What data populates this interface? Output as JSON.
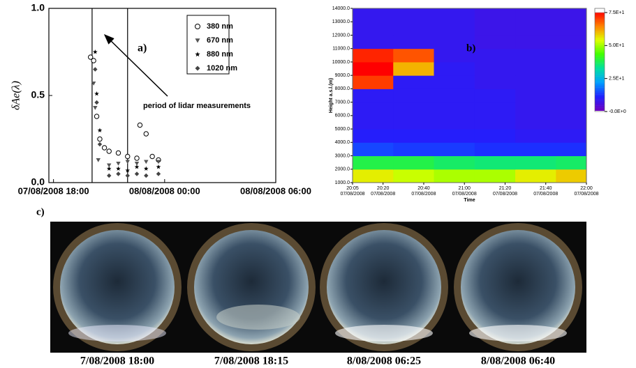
{
  "chart_data": [
    {
      "type": "scatter",
      "annotation": "a)",
      "arrow_label": "period of lidar measurements",
      "ylabel": "δAe(λ)",
      "xlim": [
        "2008-08-07 17:45",
        "2008-08-08 06:00"
      ],
      "xticks": [
        {
          "value": "2008-08-07 18:00",
          "label": "07/08/2008 18:00"
        },
        {
          "value": "2008-08-08 00:00",
          "label": "08/08/2008 00:00"
        },
        {
          "value": "2008-08-08 06:00",
          "label": "08/08/2008 06:00"
        }
      ],
      "ylim": [
        0,
        1
      ],
      "yticks": [
        {
          "value": 0,
          "label": "0.0"
        },
        {
          "value": 0.5,
          "label": "0.5"
        },
        {
          "value": 1,
          "label": "1.0"
        }
      ],
      "vlines": [
        "2008-08-07 20:05",
        "2008-08-07 22:00"
      ],
      "series": [
        {
          "name": "380 nm",
          "marker": "circle",
          "color": "#000000",
          "x": [
            "2008-08-07 20:00",
            "2008-08-07 20:10",
            "2008-08-07 20:20",
            "2008-08-07 20:30",
            "2008-08-07 20:45",
            "2008-08-07 21:00",
            "2008-08-07 21:30",
            "2008-08-07 22:00",
            "2008-08-07 22:30",
            "2008-08-07 22:40",
            "2008-08-07 23:00",
            "2008-08-07 23:20",
            "2008-08-07 23:40"
          ],
          "values": [
            0.72,
            0.7,
            0.38,
            0.25,
            0.2,
            0.18,
            0.17,
            0.15,
            0.14,
            0.33,
            0.28,
            0.15,
            0.13
          ]
        },
        {
          "name": "670 nm",
          "marker": "triangle",
          "color": "#555555",
          "x": [
            "2008-08-07 20:10",
            "2008-08-07 20:15",
            "2008-08-07 20:25",
            "2008-08-07 21:00",
            "2008-08-07 21:30",
            "2008-08-07 22:00",
            "2008-08-07 22:30",
            "2008-08-07 23:00",
            "2008-08-07 23:40"
          ],
          "values": [
            0.57,
            0.43,
            0.13,
            0.1,
            0.11,
            0.12,
            0.11,
            0.12,
            0.12
          ]
        },
        {
          "name": "880 nm",
          "marker": "star",
          "color": "#000000",
          "x": [
            "2008-08-07 20:15",
            "2008-08-07 20:20",
            "2008-08-07 20:30",
            "2008-08-07 21:00",
            "2008-08-07 21:30",
            "2008-08-07 22:00",
            "2008-08-07 22:30",
            "2008-08-07 23:00",
            "2008-08-07 23:40"
          ],
          "values": [
            0.75,
            0.51,
            0.3,
            0.08,
            0.08,
            0.07,
            0.09,
            0.08,
            0.09
          ]
        },
        {
          "name": "1020 nm",
          "marker": "diamond",
          "color": "#444444",
          "x": [
            "2008-08-07 20:15",
            "2008-08-07 20:20",
            "2008-08-07 20:30",
            "2008-08-07 21:00",
            "2008-08-07 21:30",
            "2008-08-07 22:00",
            "2008-08-07 22:30",
            "2008-08-07 23:00",
            "2008-08-07 23:40"
          ],
          "values": [
            0.65,
            0.46,
            0.22,
            0.04,
            0.05,
            0.04,
            0.05,
            0.04,
            0.05
          ]
        }
      ]
    },
    {
      "type": "heatmap",
      "annotation": "b)",
      "xlabel": "Time",
      "ylabel": "Height a.s.l.(m)",
      "xlim": [
        "20:05",
        "22:00"
      ],
      "xticks": [
        {
          "value": "20:05",
          "label": "20:05",
          "sublabel": "07/08/2008"
        },
        {
          "value": "20:20",
          "label": "20:20",
          "sublabel": "07/08/2008"
        },
        {
          "value": "20:40",
          "label": "20:40",
          "sublabel": "07/08/2008"
        },
        {
          "value": "21:00",
          "label": "21:00",
          "sublabel": "07/08/2008"
        },
        {
          "value": "21:20",
          "label": "21:20",
          "sublabel": "07/08/2008"
        },
        {
          "value": "21:40",
          "label": "21:40",
          "sublabel": "07/08/2008"
        },
        {
          "value": "22:00",
          "label": "22:00",
          "sublabel": "07/08/2008"
        }
      ],
      "ylim": [
        1000,
        14000
      ],
      "yticks": [
        {
          "value": 1000,
          "label": "1000.0"
        },
        {
          "value": 2000,
          "label": "2000.0"
        },
        {
          "value": 3000,
          "label": "3000.0"
        },
        {
          "value": 4000,
          "label": "4000.0"
        },
        {
          "value": 5000,
          "label": "5000.0"
        },
        {
          "value": 6000,
          "label": "6000.0"
        },
        {
          "value": 7000,
          "label": "7000.0"
        },
        {
          "value": 8000,
          "label": "8000.0"
        },
        {
          "value": 9000,
          "label": "9000.0"
        },
        {
          "value": 10000,
          "label": "10000.0"
        },
        {
          "value": 11000,
          "label": "11000.0"
        },
        {
          "value": 12000,
          "label": "12000.0"
        },
        {
          "value": 13000,
          "label": "13000.0"
        },
        {
          "value": 14000,
          "label": "14000.0"
        }
      ],
      "x": [
        "20:05",
        "20:25",
        "20:45",
        "21:05",
        "21:25",
        "21:45"
      ],
      "y": [
        1000,
        2000,
        3000,
        4000,
        5000,
        6000,
        7000,
        8000,
        9000,
        10000,
        11000,
        12000,
        13000
      ],
      "z": [
        [
          55,
          52,
          50,
          50,
          55,
          58
        ],
        [
          38,
          38,
          36,
          35,
          35,
          36
        ],
        [
          14,
          13,
          13,
          12,
          12,
          12
        ],
        [
          10,
          10,
          10,
          10,
          9,
          9
        ],
        [
          9,
          9,
          9,
          9,
          8,
          8
        ],
        [
          9,
          9,
          9,
          9,
          8,
          8
        ],
        [
          9,
          9,
          9,
          9,
          8,
          8
        ],
        [
          70,
          9,
          9,
          8,
          8,
          8
        ],
        [
          75,
          60,
          9,
          8,
          8,
          8
        ],
        [
          72,
          68,
          8,
          8,
          8,
          8
        ],
        [
          8,
          8,
          8,
          7,
          7,
          7
        ],
        [
          8,
          8,
          8,
          7,
          7,
          7
        ],
        [
          8,
          8,
          8,
          7,
          7,
          7
        ]
      ],
      "zlim": [
        0,
        75
      ],
      "zticks": [
        {
          "value": 0,
          "label": "-0.0E+0"
        },
        {
          "value": 25,
          "label": "2.5E+1"
        },
        {
          "value": 50,
          "label": "5.0E+1"
        },
        {
          "value": 75,
          "label": "7.5E+1"
        }
      ],
      "colorscale": [
        "#7000c0",
        "#2020ff",
        "#00a0ff",
        "#00e0a0",
        "#40ff00",
        "#e0ff00",
        "#ff8000",
        "#ff0000"
      ]
    }
  ],
  "panel_c": {
    "label": "c)",
    "captions": [
      "7/08/2008 18:00",
      "7/08/2008 18:15",
      "8/08/2008 06:25",
      "8/08/2008 06:40"
    ]
  }
}
